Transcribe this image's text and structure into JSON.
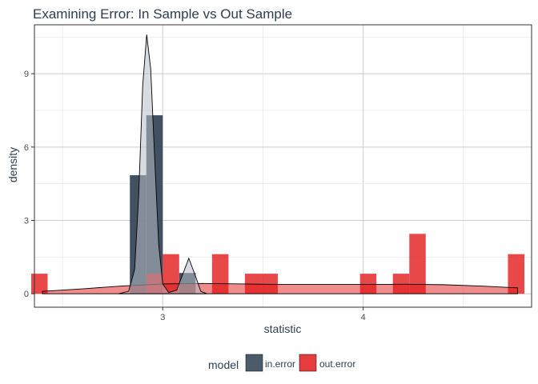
{
  "chart_data": {
    "type": "histogram-density",
    "title": "Examining Error: In Sample vs Out Sample",
    "xlabel": "statistic",
    "ylabel": "density",
    "xlim": [
      2.36,
      4.84
    ],
    "ylim": [
      -0.55,
      11.0
    ],
    "x_ticks": [
      3,
      4
    ],
    "y_ticks": [
      0,
      3,
      6,
      9
    ],
    "grid": true,
    "legend": {
      "title": "model",
      "position": "bottom",
      "entries": [
        {
          "name": "in.error",
          "color": "#2c3e50"
        },
        {
          "name": "out.error",
          "color": "#e31a1c"
        }
      ]
    },
    "bin_width": 0.082,
    "series": [
      {
        "name": "in.error",
        "color": "#2c3e50",
        "bars": [
          {
            "x": 2.877,
            "y": 4.85
          },
          {
            "x": 2.959,
            "y": 7.3
          },
          {
            "x": 3.123,
            "y": 0.85
          }
        ],
        "density_curve": [
          [
            2.78,
            0.0
          ],
          [
            2.83,
            0.1
          ],
          [
            2.86,
            1.0
          ],
          [
            2.88,
            4.0
          ],
          [
            2.9,
            8.5
          ],
          [
            2.92,
            10.6
          ],
          [
            2.94,
            9.2
          ],
          [
            2.96,
            5.5
          ],
          [
            2.98,
            2.0
          ],
          [
            3.0,
            0.4
          ],
          [
            3.03,
            0.05
          ],
          [
            3.07,
            0.15
          ],
          [
            3.1,
            0.8
          ],
          [
            3.13,
            1.45
          ],
          [
            3.16,
            0.8
          ],
          [
            3.19,
            0.1
          ],
          [
            3.22,
            0.0
          ]
        ]
      },
      {
        "name": "out.error",
        "color": "#e31a1c",
        "bars": [
          {
            "x": 2.385,
            "y": 0.82
          },
          {
            "x": 2.959,
            "y": 0.82
          },
          {
            "x": 3.041,
            "y": 1.62
          },
          {
            "x": 3.287,
            "y": 1.62
          },
          {
            "x": 3.451,
            "y": 0.82
          },
          {
            "x": 3.533,
            "y": 0.82
          },
          {
            "x": 4.025,
            "y": 0.82
          },
          {
            "x": 4.189,
            "y": 0.82
          },
          {
            "x": 4.271,
            "y": 2.45
          },
          {
            "x": 4.763,
            "y": 1.62
          }
        ],
        "density_curve": [
          [
            2.4,
            0.1
          ],
          [
            2.6,
            0.2
          ],
          [
            2.8,
            0.32
          ],
          [
            3.0,
            0.4
          ],
          [
            3.2,
            0.42
          ],
          [
            3.4,
            0.4
          ],
          [
            3.6,
            0.38
          ],
          [
            3.8,
            0.38
          ],
          [
            4.0,
            0.38
          ],
          [
            4.2,
            0.39
          ],
          [
            4.4,
            0.37
          ],
          [
            4.6,
            0.31
          ],
          [
            4.77,
            0.24
          ]
        ]
      }
    ]
  }
}
